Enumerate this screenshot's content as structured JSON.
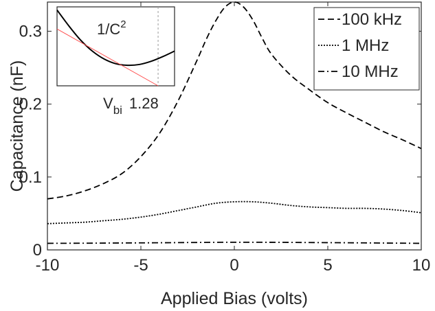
{
  "chart_data": [
    {
      "type": "line",
      "title": "",
      "xlabel": "Applied Bias (volts)",
      "ylabel": "Capacitance (nF)",
      "xlim": [
        -10,
        10
      ],
      "ylim": [
        0,
        0.34
      ],
      "xticks": [
        "-10",
        "-5",
        "0",
        "5",
        "10"
      ],
      "yticks": [
        "0",
        "0.1",
        "0.2",
        "0.3"
      ],
      "grid": false,
      "legend_position": "top-right",
      "series": [
        {
          "name": "100 kHz",
          "style": "dashed",
          "x": [
            -10,
            -9,
            -8,
            -7,
            -6,
            -5,
            -4,
            -3,
            -2,
            -1.5,
            -1,
            -0.5,
            0,
            0.5,
            1,
            1.5,
            2,
            3,
            4,
            5,
            6,
            7,
            8,
            9,
            10
          ],
          "values": [
            0.07,
            0.074,
            0.081,
            0.091,
            0.105,
            0.128,
            0.16,
            0.205,
            0.26,
            0.289,
            0.314,
            0.333,
            0.34,
            0.333,
            0.315,
            0.29,
            0.268,
            0.24,
            0.22,
            0.202,
            0.188,
            0.175,
            0.162,
            0.151,
            0.139
          ]
        },
        {
          "name": "1 MHz",
          "style": "dotted",
          "x": [
            -10,
            -9,
            -8,
            -7,
            -6,
            -5,
            -4,
            -3,
            -2,
            -1,
            0,
            1,
            2,
            3,
            4,
            5,
            6,
            7,
            8,
            9,
            10
          ],
          "values": [
            0.036,
            0.037,
            0.038,
            0.04,
            0.042,
            0.045,
            0.049,
            0.054,
            0.059,
            0.064,
            0.066,
            0.066,
            0.064,
            0.061,
            0.059,
            0.058,
            0.057,
            0.057,
            0.056,
            0.054,
            0.051
          ]
        },
        {
          "name": "10 MHz",
          "style": "dashdot",
          "x": [
            -10,
            -8,
            -6,
            -4,
            -2,
            0,
            2,
            4,
            6,
            8,
            10
          ],
          "values": [
            0.009,
            0.0092,
            0.0095,
            0.0098,
            0.0102,
            0.0105,
            0.0104,
            0.0101,
            0.0098,
            0.0094,
            0.009
          ]
        }
      ]
    },
    {
      "type": "line",
      "label": "1/C2",
      "label_main": "1/C",
      "label_sup": "2",
      "annotation_main": "V",
      "annotation_sub": "bi",
      "annotation_value": "1.28",
      "colors": {
        "fit_line": "#ff4d4d",
        "curve": "#000000",
        "marker_line": "#999999"
      },
      "series": [
        {
          "name": "",
          "style": "solid",
          "x": [
            0,
            0.1,
            0.2,
            0.3,
            0.4,
            0.5,
            0.6,
            0.7,
            0.8,
            0.9,
            1.0
          ],
          "values": [
            0.96,
            0.76,
            0.58,
            0.44,
            0.34,
            0.28,
            0.26,
            0.27,
            0.31,
            0.37,
            0.44
          ]
        },
        {
          "name": "",
          "style": "solid-thin",
          "x": [
            0,
            0.86
          ],
          "values": [
            0.72,
            0.0
          ]
        }
      ]
    }
  ]
}
